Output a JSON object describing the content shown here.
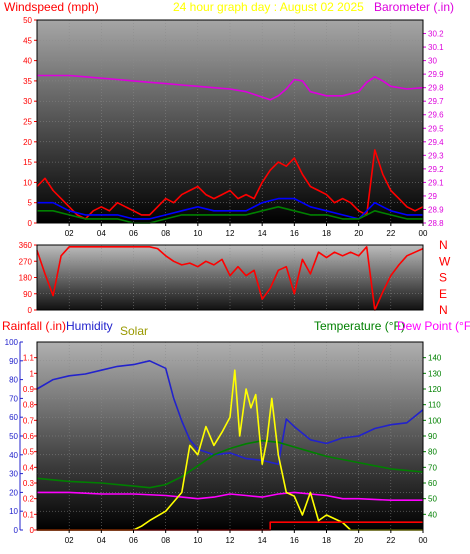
{
  "chart_data": [
    {
      "type": "line",
      "title": "24 hour graph day : August 02 2025",
      "left_axis": {
        "label": "Windspeed (mph)",
        "range": [
          0,
          50
        ],
        "ticks": [
          "0",
          "5",
          "10",
          "15",
          "20",
          "25",
          "30",
          "35",
          "40",
          "45",
          "50"
        ]
      },
      "right_axis": {
        "label": "Barometer (.in)",
        "range": [
          28.8,
          30.3
        ],
        "ticks": [
          "28.8",
          "28.9",
          "29",
          "29.1",
          "29.2",
          "29.3",
          "29.4",
          "29.5",
          "29.6",
          "29.7",
          "29.8",
          "29.9",
          "30",
          "30.1",
          "30.2"
        ]
      },
      "x_ticks": [
        "02",
        "04",
        "06",
        "08",
        "10",
        "12",
        "14",
        "16",
        "18",
        "20",
        "22",
        "00"
      ],
      "x_range": [
        0,
        24
      ],
      "series": [
        {
          "color": "#dd00dd",
          "axis": "right",
          "x": [
            0,
            1,
            2,
            3,
            4,
            5,
            6,
            7,
            8,
            9,
            10,
            11,
            12,
            13,
            14,
            14.5,
            15,
            15.5,
            16,
            16.5,
            17,
            18,
            19,
            20,
            20.5,
            21,
            21.5,
            22,
            23,
            24
          ],
          "y": [
            29.89,
            29.89,
            29.89,
            29.88,
            29.87,
            29.86,
            29.85,
            29.84,
            29.83,
            29.82,
            29.81,
            29.8,
            29.79,
            29.77,
            29.73,
            29.71,
            29.74,
            29.79,
            29.86,
            29.85,
            29.77,
            29.74,
            29.74,
            29.77,
            29.84,
            29.88,
            29.85,
            29.81,
            29.79,
            29.8
          ]
        },
        {
          "color": "#ff0000",
          "axis": "left",
          "x": [
            0,
            0.5,
            1,
            1.5,
            2,
            2.5,
            3,
            3.5,
            4,
            4.5,
            5,
            5.5,
            6,
            6.5,
            7,
            7.5,
            8,
            8.5,
            9,
            9.5,
            10,
            10.5,
            11,
            11.5,
            12,
            12.5,
            13,
            13.5,
            14,
            14.5,
            15,
            15.5,
            16,
            16.5,
            17,
            17.5,
            18,
            18.5,
            19,
            19.5,
            20,
            20.5,
            21,
            21.5,
            22,
            22.5,
            23,
            23.5,
            24
          ],
          "y": [
            9,
            11,
            8,
            6,
            4,
            2,
            1,
            3,
            4,
            3,
            5,
            4,
            3,
            2,
            2,
            4,
            6,
            5,
            7,
            8,
            9,
            7,
            6,
            7,
            8,
            6,
            7,
            6,
            10,
            13,
            15,
            14,
            16,
            12,
            9,
            8,
            7,
            5,
            6,
            5,
            3,
            2,
            18,
            12,
            8,
            6,
            4,
            3,
            4
          ]
        },
        {
          "color": "#0000ff",
          "axis": "left",
          "x": [
            0,
            1,
            2,
            3,
            4,
            5,
            6,
            7,
            8,
            9,
            10,
            11,
            12,
            13,
            14,
            15,
            16,
            17,
            18,
            19,
            20,
            21,
            22,
            23,
            24
          ],
          "y": [
            5,
            5,
            3,
            2,
            2,
            2,
            1,
            1,
            2,
            3,
            4,
            3,
            3,
            3,
            5,
            6,
            6,
            4,
            3,
            2,
            1,
            5,
            3,
            2,
            2
          ]
        },
        {
          "color": "#008000",
          "axis": "left",
          "x": [
            0,
            1,
            2,
            3,
            4,
            5,
            6,
            7,
            8,
            9,
            10,
            11,
            12,
            13,
            14,
            15,
            16,
            17,
            18,
            19,
            20,
            21,
            22,
            23,
            24
          ],
          "y": [
            3,
            3,
            2,
            1,
            1,
            1,
            0,
            0,
            1,
            2,
            2,
            2,
            2,
            2,
            3,
            4,
            3,
            2,
            2,
            1,
            1,
            3,
            2,
            1,
            1
          ]
        }
      ]
    },
    {
      "type": "line",
      "left_axis": {
        "range": [
          0,
          360
        ],
        "ticks": [
          "0",
          "90",
          "180",
          "270",
          "360"
        ]
      },
      "right_labels": [
        "N",
        "W",
        "S",
        "E",
        "N"
      ],
      "x_range": [
        0,
        24
      ],
      "series": [
        {
          "color": "#ff0000",
          "x": [
            0,
            0.5,
            1,
            1.5,
            2,
            3,
            4,
            5,
            6,
            7,
            7.5,
            8,
            8.5,
            9,
            9.5,
            10,
            10.5,
            11,
            11.5,
            12,
            12.5,
            13,
            13.5,
            14,
            14.5,
            15,
            15.5,
            16,
            16.5,
            17,
            17.5,
            18,
            18.5,
            19,
            19.5,
            20,
            20.5,
            21,
            21.5,
            22,
            22.5,
            23,
            23.5,
            24
          ],
          "y": [
            330,
            200,
            80,
            300,
            350,
            350,
            350,
            350,
            350,
            350,
            340,
            300,
            270,
            250,
            260,
            240,
            270,
            250,
            280,
            190,
            240,
            190,
            220,
            60,
            120,
            220,
            240,
            90,
            280,
            200,
            320,
            290,
            320,
            300,
            320,
            300,
            350,
            0,
            100,
            190,
            250,
            300,
            320,
            340
          ]
        }
      ]
    },
    {
      "type": "line",
      "left_axis": {
        "label": "Rainfall (.in)",
        "range": [
          0,
          1.2
        ],
        "ticks": [
          "0",
          "0.1",
          "0.2",
          "0.3",
          "0.4",
          "0.5",
          "0.6",
          "0.7",
          "0.8",
          "0.9",
          "1",
          "1.1"
        ]
      },
      "left_axis_2": {
        "label": "Humidity",
        "range": [
          0,
          100
        ],
        "ticks": [
          "0",
          "10",
          "20",
          "30",
          "40",
          "50",
          "60",
          "70",
          "80",
          "90",
          "100"
        ]
      },
      "right_axis": {
        "label": "Temperature (°F)",
        "range": [
          30,
          150
        ],
        "ticks": [
          "40",
          "50",
          "60",
          "70",
          "80",
          "90",
          "100",
          "110",
          "120",
          "130",
          "140"
        ]
      },
      "right_label_2": "Dew Point (°F)",
      "extra_label": "Solar",
      "x_ticks": [
        "02",
        "04",
        "06",
        "08",
        "10",
        "12",
        "14",
        "16",
        "18",
        "20",
        "22",
        "00"
      ],
      "x_range": [
        0,
        24
      ],
      "series": [
        {
          "color": "#2222cc",
          "axis": "left2",
          "x": [
            0,
            1,
            2,
            3,
            4,
            5,
            6,
            7,
            8,
            8.5,
            9,
            9.5,
            10,
            11,
            12,
            13,
            14,
            15,
            15.5,
            16,
            17,
            18,
            19,
            20,
            21,
            22,
            23,
            24
          ],
          "y": [
            75,
            80,
            82,
            83,
            85,
            87,
            88,
            90,
            86,
            70,
            58,
            48,
            43,
            40,
            41,
            38,
            37,
            35,
            59,
            55,
            48,
            46,
            49,
            50,
            54,
            56,
            57,
            64
          ]
        },
        {
          "color": "#008000",
          "axis": "right",
          "x": [
            0,
            2,
            4,
            6,
            7,
            8,
            9,
            10,
            11,
            12,
            13,
            14,
            15,
            16,
            17,
            18,
            19,
            20,
            22,
            24
          ],
          "y": [
            63,
            61,
            60,
            58,
            57,
            59,
            64,
            71,
            78,
            82,
            85,
            87,
            86,
            83,
            80,
            77,
            75,
            73,
            69,
            67
          ]
        },
        {
          "color": "#ff00ff",
          "axis": "right",
          "x": [
            0,
            2,
            4,
            6,
            8,
            9,
            10,
            11,
            12,
            13,
            14,
            15,
            16,
            17,
            18,
            19,
            20,
            22,
            24
          ],
          "y": [
            54,
            54,
            53,
            53,
            52,
            51,
            50,
            51,
            53,
            52,
            51,
            53,
            54,
            53,
            52,
            50,
            50,
            49,
            49
          ]
        },
        {
          "color": "#ffff00",
          "axis": "left2",
          "x": [
            0,
            6,
            6.5,
            7,
            8,
            9,
            9.5,
            10,
            10.5,
            11,
            11.5,
            12,
            12.3,
            12.6,
            13,
            13.3,
            13.6,
            14,
            14.3,
            14.6,
            15,
            15.5,
            16,
            16.5,
            17,
            17.5,
            18,
            19,
            19.5,
            20,
            24
          ],
          "y": [
            0,
            0,
            2,
            5,
            10,
            20,
            45,
            40,
            55,
            45,
            52,
            60,
            85,
            50,
            75,
            65,
            72,
            35,
            48,
            70,
            40,
            20,
            18,
            8,
            20,
            5,
            8,
            4,
            0,
            0,
            0
          ]
        },
        {
          "color": "#ff0000",
          "axis": "left",
          "x": [
            0,
            14.5,
            14.5,
            24
          ],
          "y": [
            0,
            0,
            0.05,
            0.05
          ]
        }
      ]
    }
  ]
}
